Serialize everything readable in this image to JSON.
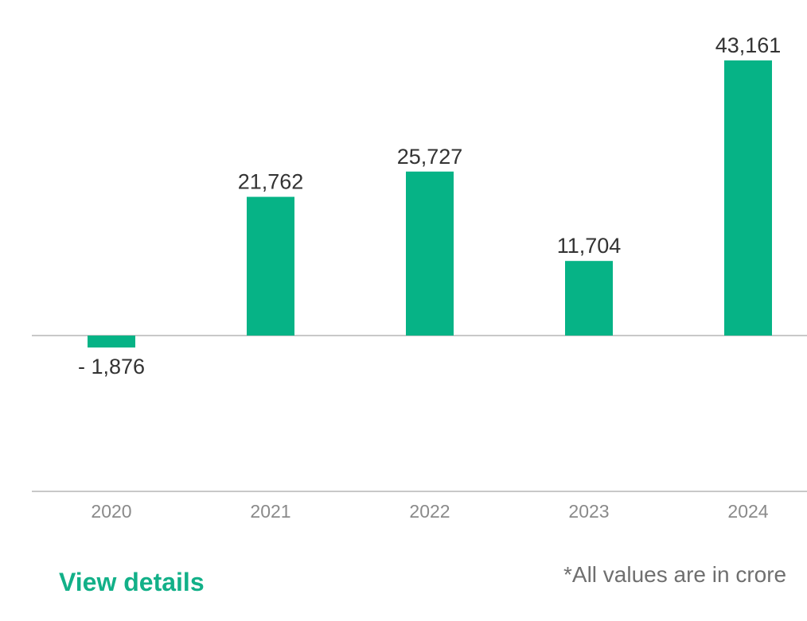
{
  "chart_data": {
    "type": "bar",
    "categories": [
      "2020",
      "2021",
      "2022",
      "2023",
      "2024"
    ],
    "values": [
      -1876,
      21762,
      25727,
      11704,
      43161
    ],
    "value_labels": [
      "- 1,876",
      "21,762",
      "25,727",
      "11,704",
      "43,161"
    ],
    "title": "",
    "xlabel": "",
    "ylabel": "",
    "ylim": [
      -25000,
      43161
    ],
    "grid": false,
    "bar_color": "#06b386",
    "axis_color": "#b5b5b5"
  },
  "footer": {
    "view_details_label": "View details",
    "note": "*All values are in crore"
  }
}
